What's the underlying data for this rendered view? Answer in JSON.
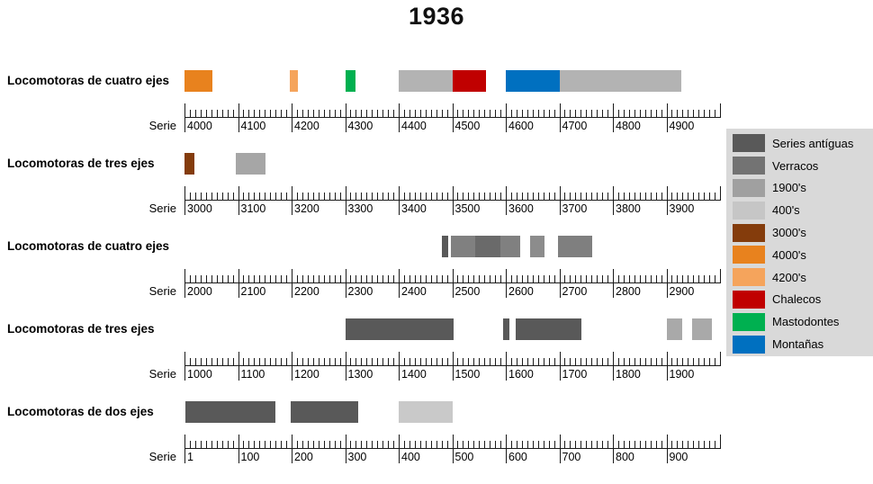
{
  "title": "1936",
  "legend": {
    "items": [
      {
        "label": "Series antíguas",
        "color": "#595959"
      },
      {
        "label": "Verracos",
        "color": "#737373"
      },
      {
        "label": "1900's",
        "color": "#a0a0a0"
      },
      {
        "label": "400's",
        "color": "#c6c6c6"
      },
      {
        "label": "3000's",
        "color": "#843c0c"
      },
      {
        "label": "4000's",
        "color": "#e8821e"
      },
      {
        "label": "4200's",
        "color": "#f5a45c"
      },
      {
        "label": "Chalecos",
        "color": "#c00000"
      },
      {
        "label": "Mastodontes",
        "color": "#00b050"
      },
      {
        "label": "Montañas",
        "color": "#0070c0"
      }
    ]
  },
  "chart_data": {
    "type": "bar",
    "subtype": "series-range-timeline",
    "title": "1936",
    "minor_tick": 10,
    "major_tick": 100,
    "legend_position": "right",
    "rows": [
      {
        "label": "Locomotoras de cuatro ejes",
        "axis_label": "Serie",
        "axis_min": 4000,
        "axis_max": 5000,
        "tick_labels": [
          "4000",
          "4100",
          "4200",
          "4300",
          "4400",
          "4500",
          "4600",
          "4700",
          "4800",
          "4900"
        ],
        "bars": [
          {
            "start": 4000,
            "end": 4052,
            "color": "#e8821e"
          },
          {
            "start": 4196,
            "end": 4212,
            "color": "#f5a45c"
          },
          {
            "start": 4300,
            "end": 4320,
            "color": "#00b050"
          },
          {
            "start": 4400,
            "end": 4500,
            "color": "#b3b3b3"
          },
          {
            "start": 4500,
            "end": 4563,
            "color": "#c00000"
          },
          {
            "start": 4600,
            "end": 4700,
            "color": "#0070c0"
          },
          {
            "start": 4700,
            "end": 4928,
            "color": "#b3b3b3"
          }
        ]
      },
      {
        "label": "Locomotoras de tres ejes",
        "axis_label": "Serie",
        "axis_min": 3000,
        "axis_max": 4000,
        "tick_labels": [
          "3000",
          "3100",
          "3200",
          "3300",
          "3400",
          "3500",
          "3600",
          "3700",
          "3800",
          "3900"
        ],
        "bars": [
          {
            "start": 3000,
            "end": 3018,
            "color": "#843c0c"
          },
          {
            "start": 3095,
            "end": 3152,
            "color": "#a6a6a6"
          }
        ]
      },
      {
        "label": "Locomotoras de cuatro ejes",
        "axis_label": "Serie",
        "axis_min": 2000,
        "axis_max": 3000,
        "tick_labels": [
          "2000",
          "2100",
          "2200",
          "2300",
          "2400",
          "2500",
          "2600",
          "2700",
          "2800",
          "2900"
        ],
        "bars": [
          {
            "start": 2480,
            "end": 2492,
            "color": "#595959"
          },
          {
            "start": 2497,
            "end": 2543,
            "color": "#808080"
          },
          {
            "start": 2543,
            "end": 2590,
            "color": "#6a6a6a"
          },
          {
            "start": 2590,
            "end": 2627,
            "color": "#808080"
          },
          {
            "start": 2646,
            "end": 2673,
            "color": "#8c8c8c"
          },
          {
            "start": 2698,
            "end": 2762,
            "color": "#7f7f7f"
          }
        ]
      },
      {
        "label": "Locomotoras de tres ejes",
        "axis_label": "Serie",
        "axis_min": 1000,
        "axis_max": 2000,
        "tick_labels": [
          "1000",
          "1100",
          "1200",
          "1300",
          "1400",
          "1500",
          "1600",
          "1700",
          "1800",
          "1900"
        ],
        "bars": [
          {
            "start": 1300,
            "end": 1503,
            "color": "#595959"
          },
          {
            "start": 1595,
            "end": 1607,
            "color": "#595959"
          },
          {
            "start": 1618,
            "end": 1742,
            "color": "#595959"
          },
          {
            "start": 1900,
            "end": 1930,
            "color": "#a9a9a9"
          },
          {
            "start": 1948,
            "end": 1985,
            "color": "#a9a9a9"
          }
        ]
      },
      {
        "label": "Locomotoras de dos ejes",
        "axis_label": "Serie",
        "axis_min": 0,
        "axis_max": 1000,
        "tick_labels": [
          "1",
          "100",
          "200",
          "300",
          "400",
          "500",
          "600",
          "700",
          "800",
          "900"
        ],
        "bars": [
          {
            "start": 1,
            "end": 170,
            "color": "#595959"
          },
          {
            "start": 198,
            "end": 325,
            "color": "#595959"
          },
          {
            "start": 400,
            "end": 500,
            "color": "#c9c9c9"
          }
        ]
      }
    ]
  }
}
